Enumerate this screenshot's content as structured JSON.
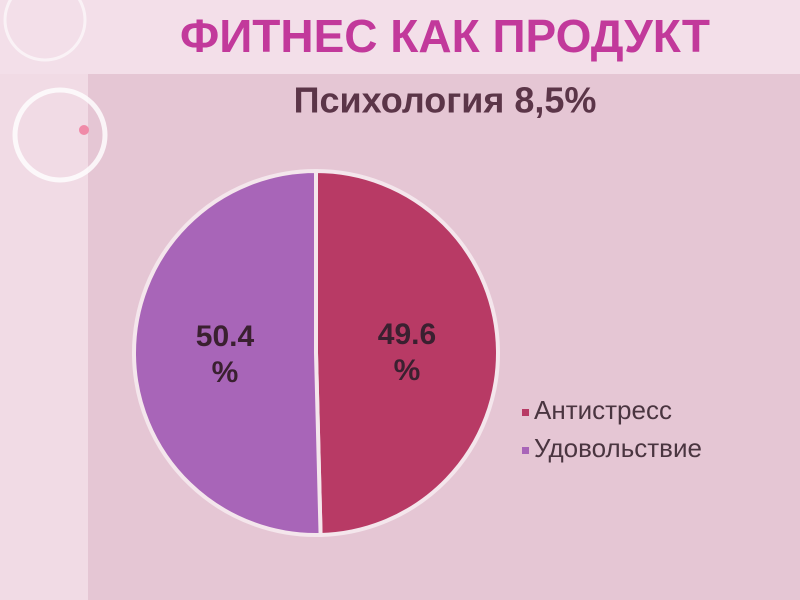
{
  "header": {
    "title": "ФИТНЕС КАК ПРОДУКТ"
  },
  "chart_data": {
    "type": "pie",
    "title": "Психология 8,5%",
    "categories": [
      "Антистресс",
      "Удовольствие"
    ],
    "values": [
      49.6,
      50.4
    ],
    "value_labels": [
      "49.6 %",
      "50.4 %"
    ],
    "colors": [
      "#b83a65",
      "#a865b8"
    ],
    "legend": "right"
  }
}
